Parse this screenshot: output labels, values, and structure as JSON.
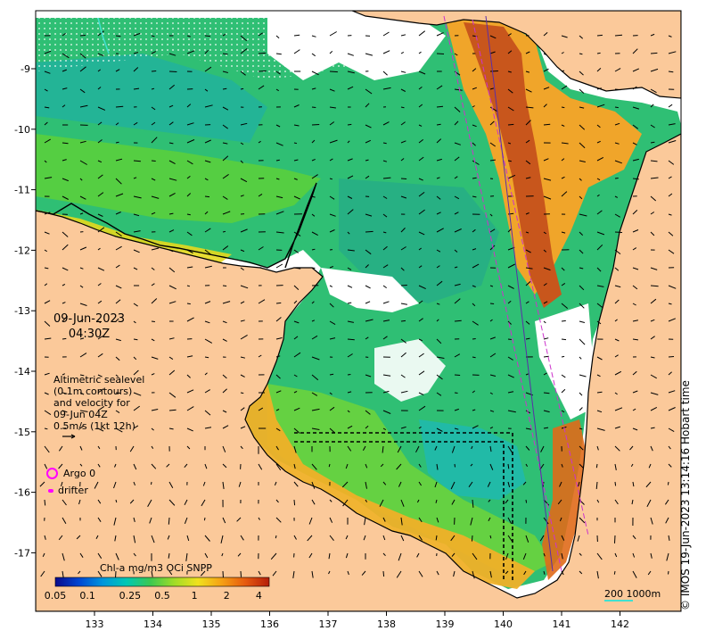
{
  "map": {
    "date": "09-Jun-2023",
    "time": "04:30Z",
    "altimetry_note": [
      "Altimetric sealevel",
      "(0.1m contours)",
      "and velocity for",
      "09-Jun 04Z",
      "0.5m/s (1kt 12h)"
    ],
    "legend": {
      "argo": "Argo 0",
      "drifter": "drifter"
    },
    "colorbar": {
      "title": "Chl-a mg/m3 OCi SNPP",
      "ticks": [
        "0.05",
        "0.1",
        "0.25",
        "0.5",
        "1",
        "2",
        "4"
      ],
      "colors": [
        "#0a0a8c",
        "#0046d2",
        "#0096dc",
        "#00c8b4",
        "#3cc850",
        "#a0dc28",
        "#f0e11e",
        "#f5a014",
        "#e65a0f",
        "#b41e0a"
      ]
    },
    "scale_bar": {
      "text": "200  1000m",
      "color": "#40e0d0"
    },
    "credit": "© IMOS 19-Jun-2023 13:14:16 Hobart time",
    "axes": {
      "lon_ticks": [
        "133",
        "134",
        "135",
        "136",
        "137",
        "138",
        "139",
        "140",
        "141",
        "142"
      ],
      "lat_ticks": [
        "-9",
        "-10",
        "-11",
        "-12",
        "-13",
        "-14",
        "-15",
        "-16",
        "-17"
      ]
    },
    "colors": {
      "land": "#fbc99a",
      "water_base": "#2fbf74",
      "coast": "#000000",
      "track": "#cc33cc"
    }
  }
}
